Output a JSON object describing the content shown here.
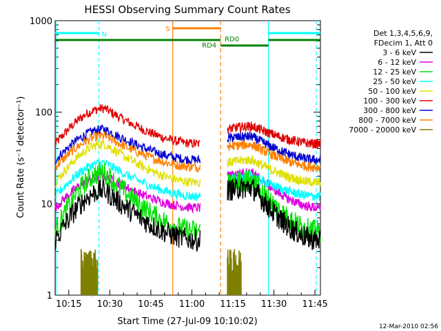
{
  "chart_data": {
    "type": "line",
    "title": "HESSI Observing Summary Count Rates",
    "xlabel": "Start Time (27-Jul-09 10:10:02)",
    "ylabel": "Count Rate (s⁻¹ detector⁻¹)",
    "yscale": "log",
    "ylim": [
      1,
      1000
    ],
    "xlim_minutes_after_10_10_02": [
      0,
      97
    ],
    "xticks": [
      "10:15",
      "10:30",
      "10:45",
      "11:00",
      "11:15",
      "11:30",
      "11:45"
    ],
    "yticks": [
      "1",
      "10",
      "100",
      "1000"
    ],
    "timestamp": "12-Mar-2010 02:56",
    "legend": {
      "placement": "right",
      "header_lines": [
        "Det 1,3,4,5,6,9,",
        "FDecim 1, Att 0"
      ]
    },
    "series": [
      {
        "name": "3 - 6 keV",
        "color": "#000000"
      },
      {
        "name": "6 - 12 keV",
        "color": "#e000e0"
      },
      {
        "name": "12 - 25 keV",
        "color": "#00e000"
      },
      {
        "name": "25 - 50 keV",
        "color": "#00ffff"
      },
      {
        "name": "50 - 100 keV",
        "color": "#e0e000"
      },
      {
        "name": "100 - 300 keV",
        "color": "#e00000"
      },
      {
        "name": "300 - 800 keV",
        "color": "#0000d0"
      },
      {
        "name": "800 - 7000 keV",
        "color": "#ff8000"
      },
      {
        "name": "7000 - 20000 keV",
        "color": "#808000"
      }
    ],
    "segments": [
      {
        "x": [
          0,
          53
        ],
        "band_levels": [
          [
            4,
            14,
            4
          ],
          [
            9,
            20,
            9
          ],
          [
            5,
            22,
            5
          ],
          [
            12,
            28,
            12
          ],
          [
            17,
            45,
            17
          ],
          [
            45,
            110,
            45
          ],
          [
            30,
            65,
            30
          ],
          [
            25,
            55,
            25
          ]
        ],
        "peak_x": 18
      },
      {
        "x": [
          63,
          97
        ],
        "band_levels": [
          [
            14,
            15,
            4
          ],
          [
            20,
            22,
            9
          ],
          [
            16,
            18,
            5
          ],
          [
            18,
            20,
            12
          ],
          [
            28,
            30,
            17
          ],
          [
            65,
            70,
            45
          ],
          [
            52,
            54,
            30
          ],
          [
            42,
            44,
            25
          ]
        ],
        "peak_x": 72
      }
    ],
    "annotations": [
      {
        "text": "N",
        "color": "#00ffff"
      },
      {
        "text": "S",
        "color": "#ff8000"
      },
      {
        "text": "RD0",
        "color": "#008000"
      },
      {
        "text": "RD4",
        "color": "#008000"
      }
    ]
  }
}
